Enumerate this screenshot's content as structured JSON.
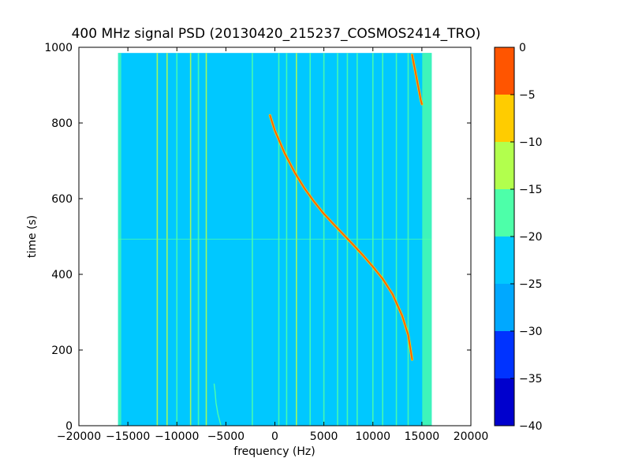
{
  "chart_data": {
    "type": "heatmap",
    "title": "400 MHz signal PSD (20130420_215237_COSMOS2414_TRO)",
    "xlabel": "frequency (Hz)",
    "ylabel": "time (s)",
    "xlim": [
      -20000,
      20000
    ],
    "ylim": [
      0,
      1000
    ],
    "x_ticks": [
      -20000,
      -15000,
      -10000,
      -5000,
      0,
      5000,
      10000,
      15000,
      20000
    ],
    "x_tick_labels": [
      "−20000",
      "−15000",
      "−10000",
      "−5000",
      "0",
      "5000",
      "10000",
      "15000",
      "20000"
    ],
    "y_ticks": [
      0,
      200,
      400,
      600,
      800,
      1000
    ],
    "y_tick_labels": [
      "0",
      "200",
      "400",
      "600",
      "800",
      "1000"
    ],
    "data_extent": {
      "x": [
        -16000,
        16000
      ],
      "y": [
        0,
        985
      ]
    },
    "background_level": -22.5,
    "edge_band_level": -17.5,
    "colorbar": {
      "levels": [
        -40,
        -35,
        -30,
        -25,
        -20,
        -15,
        -10,
        -5,
        0
      ],
      "tick_labels": [
        "−40",
        "−35",
        "−30",
        "−25",
        "−20",
        "−15",
        "−10",
        "−5",
        "0"
      ],
      "colors": [
        "#0000cd",
        "#0033ff",
        "#00a8ff",
        "#00c8ff",
        "#4dffa9",
        "#b2ff4d",
        "#ffcc00",
        "#ff5500",
        "#cc0000"
      ]
    },
    "series": [
      {
        "level": -2.5,
        "points": [
          [
            -500,
            820
          ],
          [
            0,
            780
          ],
          [
            1000,
            720
          ],
          [
            2000,
            670
          ],
          [
            3000,
            628
          ],
          [
            4000,
            592
          ],
          [
            5000,
            560
          ],
          [
            6000,
            532
          ],
          [
            7000,
            505
          ],
          [
            8000,
            478
          ],
          [
            9000,
            450
          ],
          [
            10000,
            420
          ],
          [
            11000,
            388
          ],
          [
            12000,
            348
          ],
          [
            13000,
            290
          ],
          [
            13600,
            240
          ],
          [
            14000,
            175
          ]
        ]
      },
      {
        "level": -2.5,
        "points": [
          [
            14000,
            980
          ],
          [
            14300,
            940
          ],
          [
            14600,
            900
          ],
          [
            14900,
            860
          ],
          [
            15000,
            850
          ]
        ]
      },
      {
        "level": -17.5,
        "points": [
          [
            -5500,
            0
          ],
          [
            -5800,
            30
          ],
          [
            -6000,
            60
          ],
          [
            -6100,
            90
          ],
          [
            -6200,
            110
          ]
        ]
      }
    ],
    "vertical_lines": [
      {
        "x": -12000,
        "level": -15
      },
      {
        "x": -11000,
        "level": -15
      },
      {
        "x": -10000,
        "level": -17.5
      },
      {
        "x": -8600,
        "level": -15
      },
      {
        "x": -7800,
        "level": -17.5
      },
      {
        "x": -7000,
        "level": -15
      },
      {
        "x": -2300,
        "level": -17.5
      },
      {
        "x": 400,
        "level": -17.5
      },
      {
        "x": 1200,
        "level": -17.5
      },
      {
        "x": 2200,
        "level": -15
      },
      {
        "x": 3600,
        "level": -17.5
      },
      {
        "x": 5000,
        "level": -17.5
      },
      {
        "x": 6400,
        "level": -17.5
      },
      {
        "x": 7400,
        "level": -17.5
      },
      {
        "x": 8400,
        "level": -17.5
      },
      {
        "x": 10000,
        "level": -17.5
      },
      {
        "x": 11000,
        "level": -17.5
      },
      {
        "x": 12400,
        "level": -17.5
      },
      {
        "x": 13600,
        "level": -17.5
      }
    ],
    "horizontal_line": {
      "y": 493,
      "level": -17.5
    }
  }
}
